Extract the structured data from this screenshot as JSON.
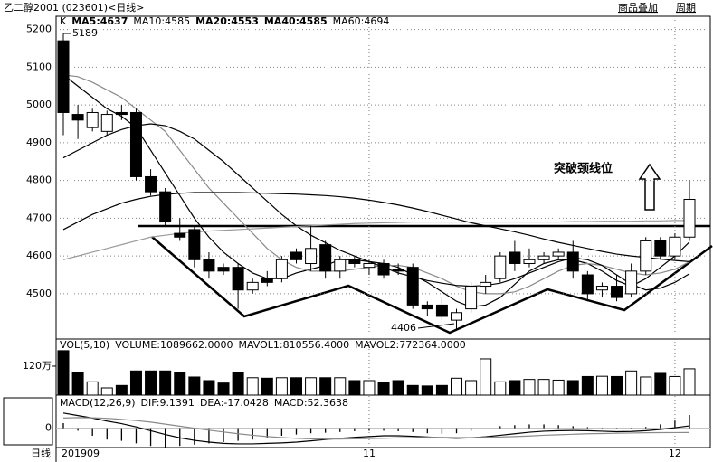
{
  "header": {
    "title": "乙二醇2001 (023601)<日线>",
    "overlay": "商品叠加",
    "period": "周期"
  },
  "chart_data": [
    {
      "type": "candlestick",
      "title": "K",
      "categories": [
        "201909",
        null,
        null,
        null,
        null,
        null,
        null,
        null,
        null,
        null,
        null,
        null,
        null,
        null,
        null,
        null,
        null,
        null,
        null,
        null,
        null,
        "11",
        null,
        null,
        null,
        null,
        null,
        null,
        null,
        null,
        null,
        null,
        null,
        null,
        null,
        null,
        null,
        null,
        null,
        null,
        null,
        null,
        "12",
        null
      ],
      "open": [
        5170,
        4975,
        4940,
        4930,
        4980,
        4980,
        4810,
        4770,
        4660,
        4670,
        4590,
        4570,
        4570,
        4510,
        4540,
        4540,
        4610,
        4580,
        4630,
        4560,
        4590,
        4570,
        4580,
        4565,
        4570,
        4470,
        4470,
        4430,
        4460,
        4520,
        4540,
        4610,
        4580,
        4590,
        4600,
        4610,
        4550,
        4510,
        4520,
        4500,
        4560,
        4640,
        4600,
        4650
      ],
      "high": [
        5189,
        5000,
        4990,
        4985,
        5000,
        4990,
        4830,
        4780,
        4700,
        4680,
        4610,
        4580,
        4580,
        4540,
        4560,
        4600,
        4620,
        4680,
        4640,
        4600,
        4600,
        4590,
        4590,
        4580,
        4580,
        4480,
        4490,
        4460,
        4530,
        4550,
        4610,
        4640,
        4620,
        4610,
        4620,
        4640,
        4560,
        4530,
        4550,
        4580,
        4650,
        4650,
        4660,
        4800
      ],
      "low": [
        4920,
        4910,
        4930,
        4920,
        4960,
        4800,
        4760,
        4680,
        4640,
        4570,
        4540,
        4550,
        4460,
        4500,
        4520,
        4530,
        4580,
        4560,
        4540,
        4540,
        4570,
        4550,
        4540,
        4550,
        4460,
        4440,
        4430,
        4406,
        4450,
        4500,
        4530,
        4560,
        4570,
        4580,
        4590,
        4540,
        4480,
        4490,
        4480,
        4490,
        4550,
        4590,
        4590,
        4640
      ],
      "close": [
        4980,
        4960,
        4980,
        4975,
        4975,
        4810,
        4770,
        4690,
        4650,
        4590,
        4560,
        4560,
        4510,
        4530,
        4530,
        4590,
        4590,
        4620,
        4560,
        4590,
        4580,
        4580,
        4550,
        4560,
        4470,
        4460,
        4440,
        4450,
        4520,
        4530,
        4600,
        4580,
        4590,
        4600,
        4610,
        4560,
        4500,
        4520,
        4490,
        4560,
        4640,
        4600,
        4650,
        4750
      ],
      "colors": {
        "up": "#ffffff",
        "down": "#000000"
      },
      "series": [
        {
          "name": "MA5:4637",
          "color": "#000000",
          "values": [
            5080,
            5050,
            5020,
            4990,
            4970,
            4940,
            4880,
            4820,
            4760,
            4700,
            4650,
            4610,
            4580,
            4555,
            4540,
            4540,
            4555,
            4565,
            4575,
            4590,
            4590,
            4585,
            4580,
            4570,
            4550,
            4530,
            4505,
            4480,
            4465,
            4470,
            4490,
            4525,
            4560,
            4580,
            4590,
            4590,
            4580,
            4560,
            4535,
            4520,
            4540,
            4570,
            4600,
            4637
          ]
        },
        {
          "name": "MA10:4585",
          "color": "#8a8a8a",
          "values": [
            5080,
            5075,
            5060,
            5040,
            5020,
            4990,
            4960,
            4930,
            4880,
            4830,
            4780,
            4740,
            4700,
            4660,
            4620,
            4590,
            4570,
            4560,
            4560,
            4560,
            4565,
            4570,
            4575,
            4575,
            4570,
            4555,
            4540,
            4520,
            4505,
            4500,
            4500,
            4505,
            4520,
            4540,
            4560,
            4575,
            4580,
            4575,
            4565,
            4555,
            4550,
            4555,
            4565,
            4585
          ]
        },
        {
          "name": "MA20:4553",
          "color": "#000000",
          "values": [
            4860,
            4880,
            4900,
            4920,
            4935,
            4945,
            4950,
            4945,
            4930,
            4910,
            4880,
            4850,
            4815,
            4780,
            4745,
            4710,
            4680,
            4655,
            4635,
            4615,
            4600,
            4585,
            4570,
            4555,
            4545,
            4535,
            4528,
            4522,
            4520,
            4522,
            4528,
            4540,
            4555,
            4570,
            4585,
            4595,
            4590,
            4575,
            4550,
            4525,
            4510,
            4515,
            4530,
            4553
          ]
        },
        {
          "name": "MA40:4585",
          "color": "#000000",
          "values": [
            4670,
            4690,
            4710,
            4725,
            4740,
            4750,
            4758,
            4763,
            4766,
            4768,
            4768,
            4768,
            4768,
            4767,
            4766,
            4765,
            4764,
            4762,
            4760,
            4757,
            4753,
            4748,
            4742,
            4735,
            4727,
            4718,
            4708,
            4698,
            4688,
            4680,
            4672,
            4664,
            4655,
            4645,
            4636,
            4628,
            4620,
            4612,
            4605,
            4600,
            4596,
            4592,
            4588,
            4585
          ]
        },
        {
          "name": "MA60:4694",
          "color": "#9a9a9a",
          "values": [
            4590,
            4600,
            4610,
            4620,
            4630,
            4640,
            4650,
            4655,
            4660,
            4663,
            4666,
            4668,
            4670,
            4672,
            4674,
            4676,
            4678,
            4680,
            4682,
            4684,
            4686,
            4687,
            4688,
            4689,
            4690,
            4690,
            4690,
            4690,
            4690,
            4690,
            4690,
            4690,
            4690,
            4690,
            4690,
            4691,
            4691,
            4692,
            4692,
            4692,
            4693,
            4693,
            4694,
            4694
          ]
        }
      ],
      "ylim": [
        4380,
        5235
      ],
      "yticks": [
        4500,
        4600,
        4700,
        4800,
        4900,
        5000,
        5100,
        5200
      ],
      "grid": true,
      "annotations": {
        "high": "5189",
        "low": "4406",
        "note": "突破颈线位"
      },
      "x_axis_label": "日线"
    },
    {
      "type": "bar",
      "title": "VOL(5,10)",
      "legend": [
        {
          "text": "VOLUME:1089662.0000",
          "color": "#000000"
        },
        {
          "text": "MAVOL1:810556.4000",
          "color": "#000000"
        },
        {
          "text": "MAVOL2:772364.0000",
          "color": "#8a8a8a"
        }
      ],
      "values": [
        1840000,
        950000,
        550000,
        300000,
        400000,
        1000000,
        1000000,
        1000000,
        950000,
        750000,
        600000,
        500000,
        920000,
        720000,
        700000,
        720000,
        720000,
        720000,
        720000,
        720000,
        600000,
        600000,
        520000,
        600000,
        400000,
        380000,
        400000,
        700000,
        600000,
        1500000,
        550000,
        600000,
        650000,
        650000,
        620000,
        600000,
        770000,
        780000,
        770000,
        1000000,
        750000,
        900000,
        770000,
        1089662
      ],
      "ylim": [
        0,
        2210000
      ],
      "yticks": [
        {
          "value": 1200000,
          "label": "120万"
        }
      ]
    },
    {
      "type": "macd",
      "title": "MACD(12,26,9)",
      "values": [
        20,
        -10,
        -30,
        -45,
        -50,
        -60,
        -70,
        -75,
        -70,
        -65,
        -60,
        -55,
        -50,
        -45,
        -40,
        -30,
        -25,
        -20,
        -18,
        -15,
        -12,
        -10,
        -10,
        -12,
        -15,
        -20,
        -22,
        -20,
        -10,
        0,
        8,
        12,
        15,
        15,
        12,
        8,
        4,
        -2,
        -5,
        -3,
        5,
        15,
        30,
        52.3638
      ],
      "value_name": "MACD:52.3638",
      "series": [
        {
          "name": "DIF:9.1391",
          "color": "#000000",
          "values": [
            60,
            50,
            40,
            28,
            18,
            5,
            -10,
            -25,
            -38,
            -48,
            -55,
            -60,
            -62,
            -62,
            -60,
            -58,
            -55,
            -50,
            -45,
            -40,
            -36,
            -33,
            -30,
            -30,
            -32,
            -35,
            -38,
            -40,
            -38,
            -34,
            -28,
            -22,
            -16,
            -12,
            -10,
            -9,
            -10,
            -12,
            -14,
            -13,
            -10,
            -5,
            2,
            9.1391
          ]
        },
        {
          "name": "DEA:-17.0428",
          "color": "#8a8a8a",
          "values": [
            40,
            42,
            41,
            39,
            35,
            30,
            24,
            16,
            8,
            0,
            -8,
            -15,
            -22,
            -28,
            -33,
            -37,
            -40,
            -42,
            -43,
            -43,
            -42,
            -41,
            -40,
            -38,
            -37,
            -36,
            -36,
            -37,
            -37,
            -36,
            -35,
            -33,
            -31,
            -28,
            -26,
            -24,
            -22,
            -21,
            -20,
            -19,
            -18,
            -17.5,
            -17.2,
            -17.0428
          ]
        }
      ],
      "ylim": [
        -80,
        120
      ],
      "yticks": [
        0
      ]
    }
  ]
}
